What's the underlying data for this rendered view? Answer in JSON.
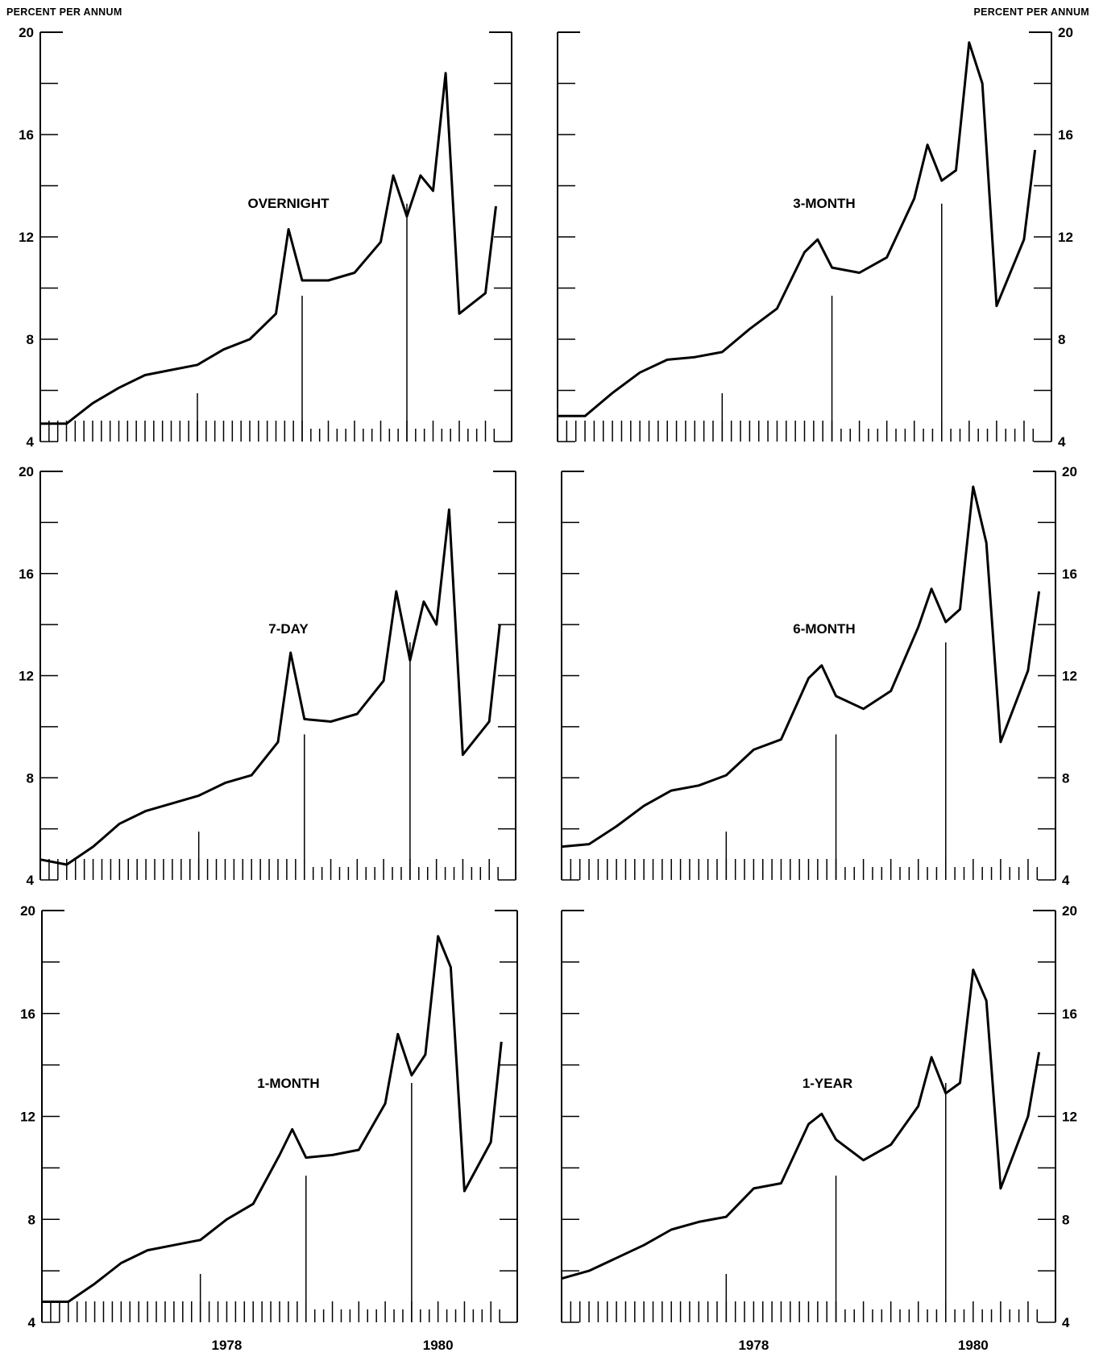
{
  "labels": {
    "left_unit": "PERCENT PER ANNUM",
    "right_unit": "PERCENT PER ANNUM"
  },
  "colors": {
    "line": "#000000",
    "background": "#ffffff"
  },
  "chart_data": [
    {
      "type": "line",
      "title": "OVERNIGHT",
      "ylim": [
        4,
        20
      ],
      "y_ticks": [
        4,
        8,
        12,
        16,
        20
      ],
      "x_labels": [],
      "x": [
        1976.25,
        1976.5,
        1976.75,
        1977.0,
        1977.25,
        1977.5,
        1977.75,
        1978.0,
        1978.25,
        1978.5,
        1978.62,
        1978.75,
        1979.0,
        1979.25,
        1979.5,
        1979.62,
        1979.75,
        1979.88,
        1980.0,
        1980.12,
        1980.25,
        1980.5,
        1980.6
      ],
      "y": [
        4.7,
        4.7,
        5.5,
        6.1,
        6.6,
        6.8,
        7.0,
        7.6,
        8.0,
        9.0,
        12.3,
        10.3,
        10.3,
        10.6,
        11.8,
        14.4,
        12.8,
        14.4,
        13.8,
        18.4,
        9.0,
        9.8,
        13.2
      ],
      "annotations": [
        "vertical tick lines mark monthly dates; longer lines at quarter ends"
      ]
    },
    {
      "type": "line",
      "title": "3-MONTH",
      "ylim": [
        4,
        20
      ],
      "y_ticks": [
        4,
        8,
        12,
        16,
        20
      ],
      "x_labels": [],
      "x": [
        1976.25,
        1976.5,
        1976.75,
        1977.0,
        1977.25,
        1977.5,
        1977.75,
        1978.0,
        1978.25,
        1978.5,
        1978.62,
        1978.75,
        1979.0,
        1979.25,
        1979.5,
        1979.62,
        1979.75,
        1979.88,
        1980.0,
        1980.12,
        1980.25,
        1980.5,
        1980.6
      ],
      "y": [
        5.0,
        5.0,
        5.9,
        6.7,
        7.2,
        7.3,
        7.5,
        8.4,
        9.2,
        11.4,
        11.9,
        10.8,
        10.6,
        11.2,
        13.5,
        15.6,
        14.2,
        14.6,
        19.6,
        18.0,
        9.3,
        11.9,
        15.4
      ]
    },
    {
      "type": "line",
      "title": "7-DAY",
      "ylim": [
        4,
        20
      ],
      "y_ticks": [
        4,
        8,
        12,
        16,
        20
      ],
      "x_labels": [],
      "x": [
        1976.25,
        1976.5,
        1976.75,
        1977.0,
        1977.25,
        1977.5,
        1977.75,
        1978.0,
        1978.25,
        1978.5,
        1978.62,
        1978.75,
        1979.0,
        1979.25,
        1979.5,
        1979.62,
        1979.75,
        1979.88,
        1980.0,
        1980.12,
        1980.25,
        1980.5,
        1980.6
      ],
      "y": [
        4.8,
        4.6,
        5.3,
        6.2,
        6.7,
        7.0,
        7.3,
        7.8,
        8.1,
        9.4,
        12.9,
        10.3,
        10.2,
        10.5,
        11.8,
        15.3,
        12.6,
        14.9,
        14.0,
        18.5,
        8.9,
        10.2,
        14.0
      ]
    },
    {
      "type": "line",
      "title": "6-MONTH",
      "ylim": [
        4,
        20
      ],
      "y_ticks": [
        4,
        8,
        12,
        16,
        20
      ],
      "x_labels": [],
      "x": [
        1976.25,
        1976.5,
        1976.75,
        1977.0,
        1977.25,
        1977.5,
        1977.75,
        1978.0,
        1978.25,
        1978.5,
        1978.62,
        1978.75,
        1979.0,
        1979.25,
        1979.5,
        1979.62,
        1979.75,
        1979.88,
        1980.0,
        1980.12,
        1980.25,
        1980.5,
        1980.6
      ],
      "y": [
        5.3,
        5.4,
        6.1,
        6.9,
        7.5,
        7.7,
        8.1,
        9.1,
        9.5,
        11.9,
        12.4,
        11.2,
        10.7,
        11.4,
        13.9,
        15.4,
        14.1,
        14.6,
        19.4,
        17.2,
        9.4,
        12.2,
        15.3
      ]
    },
    {
      "type": "line",
      "title": "1-MONTH",
      "ylim": [
        4,
        20
      ],
      "y_ticks": [
        4,
        8,
        12,
        16,
        20
      ],
      "x_labels": [
        "1978",
        "1980"
      ],
      "x": [
        1976.25,
        1976.5,
        1976.75,
        1977.0,
        1977.25,
        1977.5,
        1977.75,
        1978.0,
        1978.25,
        1978.5,
        1978.62,
        1978.75,
        1979.0,
        1979.25,
        1979.5,
        1979.62,
        1979.75,
        1979.88,
        1980.0,
        1980.12,
        1980.25,
        1980.5,
        1980.6
      ],
      "y": [
        4.8,
        4.8,
        5.5,
        6.3,
        6.8,
        7.0,
        7.2,
        8.0,
        8.6,
        10.5,
        11.5,
        10.4,
        10.5,
        10.7,
        12.5,
        15.2,
        13.6,
        14.4,
        19.0,
        17.8,
        9.1,
        11.0,
        14.9
      ]
    },
    {
      "type": "line",
      "title": "1-YEAR",
      "ylim": [
        4,
        20
      ],
      "y_ticks": [
        4,
        8,
        12,
        16,
        20
      ],
      "x_labels": [
        "1978",
        "1980"
      ],
      "x": [
        1976.25,
        1976.5,
        1976.75,
        1977.0,
        1977.25,
        1977.5,
        1977.75,
        1978.0,
        1978.25,
        1978.5,
        1978.62,
        1978.75,
        1979.0,
        1979.25,
        1979.5,
        1979.62,
        1979.75,
        1979.88,
        1980.0,
        1980.12,
        1980.25,
        1980.5,
        1980.6
      ],
      "y": [
        5.7,
        6.0,
        6.5,
        7.0,
        7.6,
        7.9,
        8.1,
        9.2,
        9.4,
        11.7,
        12.1,
        11.1,
        10.3,
        10.9,
        12.4,
        14.3,
        12.9,
        13.3,
        17.7,
        16.5,
        9.2,
        12.0,
        14.5
      ]
    }
  ]
}
